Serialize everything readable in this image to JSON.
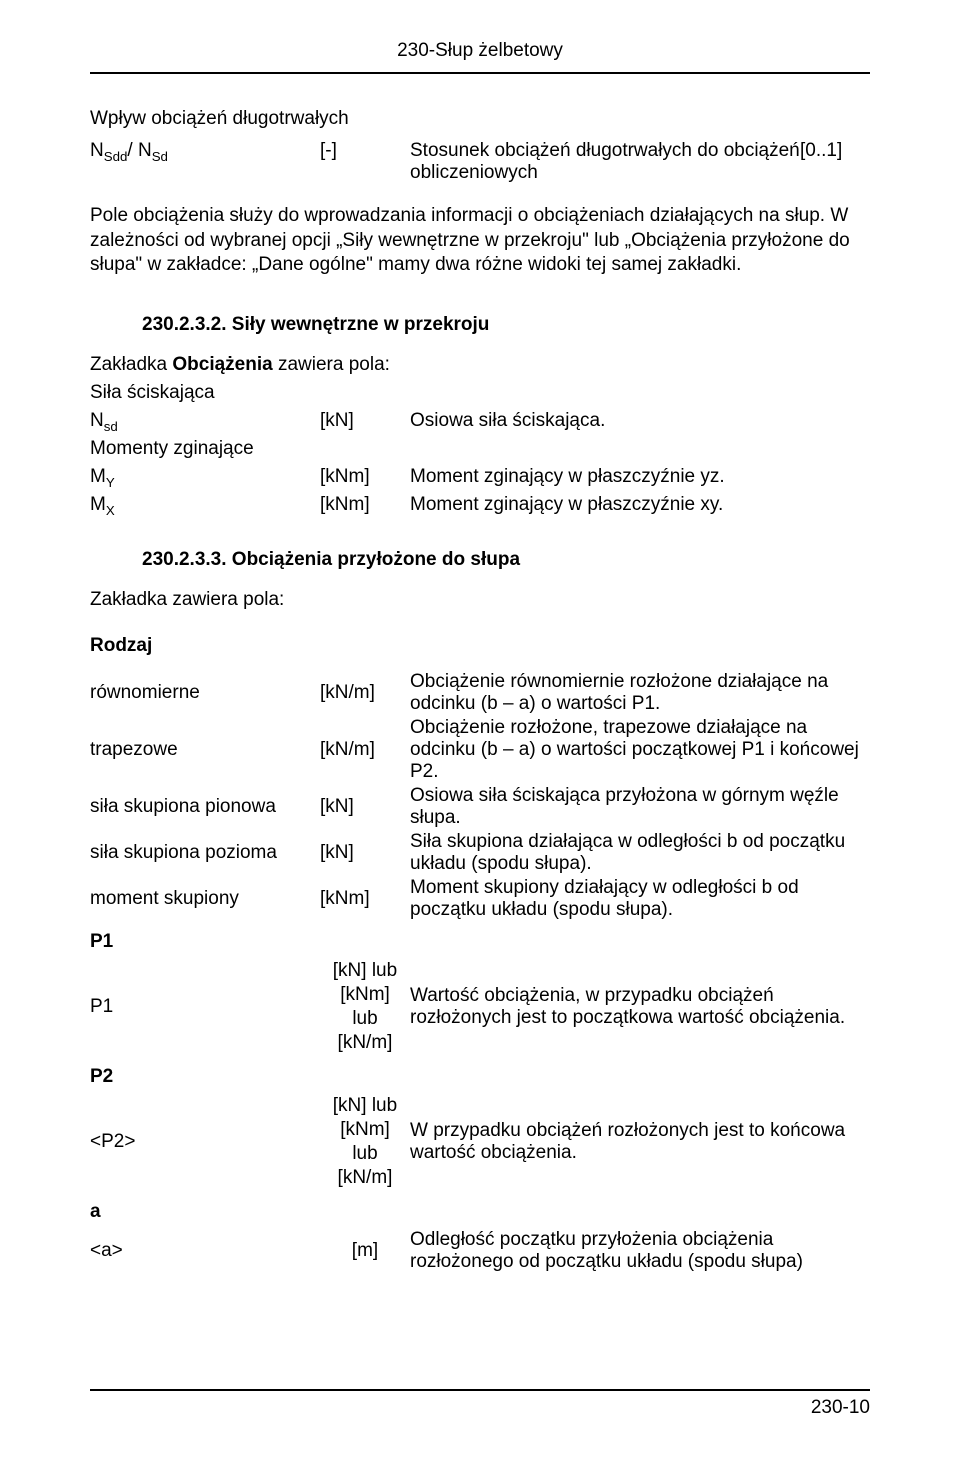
{
  "header": {
    "title": "230-Słup żelbetowy"
  },
  "sec_influence": {
    "lead": "Wpływ obciążeń długotrwałych",
    "sym_html": "N<sub>Sdd</sub>/ N<sub>Sd</sub>",
    "unit": "[-]",
    "desc": "Stosunek obciążeń długotrwałych do obciążeń obliczeniowych",
    "range": "[0..1]"
  },
  "para1": "Pole obciążenia służy do wprowadzania informacji o obciążeniach działających na słup. W zależności od wybranej opcji „Siły wewnętrzne w przekroju\" lub „Obciążenia przyłożone do słupa\" w zakładce: „Dane ogólne\" mamy dwa różne widoki tej samej zakładki.",
  "subhead1": "230.2.3.2. Siły wewnętrzne w przekroju",
  "tab1": {
    "lead_pref": "Zakładka ",
    "lead_bold": "Obciążenia",
    "lead_suf": " zawiera pola:",
    "group1": "Siła ściskająca",
    "r1_sym_html": "N<sub>sd</sub>",
    "r1_unit": "[kN]",
    "r1_desc": "Osiowa siła ściskająca.",
    "group2": "Momenty zginające",
    "r2_sym_html": "M<sub>Y</sub>",
    "r2_unit": "[kNm]",
    "r2_desc": "Moment zginający w płaszczyźnie yz.",
    "r3_sym_html": "M<sub>X</sub>",
    "r3_unit": "[kNm]",
    "r3_desc": "Moment zginający w płaszczyźnie xy."
  },
  "subhead2": "230.2.3.3. Obciążenia przyłożone do słupa",
  "tab2_lead": "Zakładka zawiera pola:",
  "rodzaj": {
    "heading": "Rodzaj",
    "rows": [
      {
        "sym": "równomierne",
        "unit": "[kN/m]",
        "desc": "Obciążenie równomiernie rozłożone działające na odcinku (b – a) o wartości P1."
      },
      {
        "sym": "trapezowe",
        "unit": "[kN/m]",
        "desc": "Obciążenie rozłożone, trapezowe działające na odcinku (b – a) o wartości początkowej P1 i końcowej P2."
      },
      {
        "sym": "siła skupiona pionowa",
        "unit": "[kN]",
        "desc": "Osiowa siła ściskająca przyłożona w górnym węźle słupa."
      },
      {
        "sym": "siła skupiona pozioma",
        "unit": "[kN]",
        "desc": "Siła skupiona działająca w odległości b od początku układu (spodu słupa)."
      },
      {
        "sym": "moment skupiony",
        "unit": "[kNm]",
        "desc": "Moment skupiony działający w odległości b od początku układu (spodu słupa)."
      }
    ]
  },
  "p1": {
    "heading": "P1",
    "sym": "P1",
    "unit_html": "[kN] lub<br>[kNm]<br>lub<br>[kN/m]",
    "desc": "Wartość obciążenia, w przypadku obciążeń rozłożonych jest to początkowa wartość obciążenia."
  },
  "p2": {
    "heading": "P2",
    "sym": "<P2>",
    "unit_html": "[kN] lub<br>[kNm]<br>lub<br>[kN/m]",
    "desc": "W przypadku obciążeń rozłożonych jest to końcowa wartość obciążenia."
  },
  "a": {
    "heading": "a",
    "sym": "<a>",
    "unit": "[m]",
    "desc": "Odległość początku przyłożenia obciążenia rozłożonego od początku układu (spodu słupa)"
  },
  "footer": {
    "page": "230-10"
  }
}
